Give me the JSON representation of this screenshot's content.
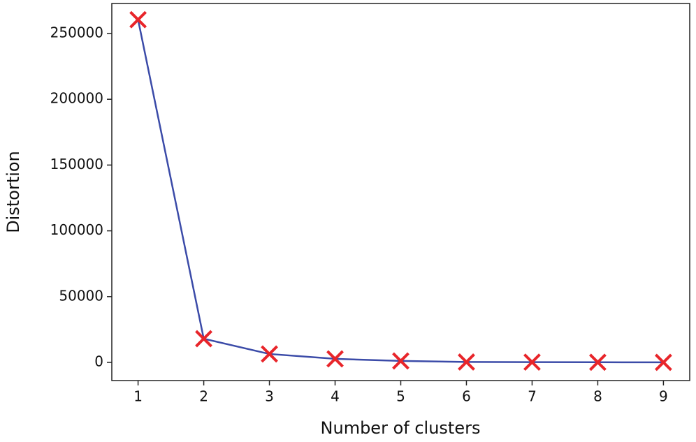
{
  "chart_data": {
    "type": "line",
    "xlabel": "Number of clusters",
    "ylabel": "Distortion",
    "x": [
      1,
      2,
      3,
      4,
      5,
      6,
      7,
      8,
      9
    ],
    "values": [
      260500,
      18000,
      6400,
      2700,
      1100,
      300,
      200,
      100,
      50
    ],
    "color": "#3b4ba8",
    "marker": "x",
    "marker_color": "#e8252a",
    "xlim": [
      0.6,
      9.4
    ],
    "xticks": [
      1,
      2,
      3,
      4,
      5,
      6,
      7,
      8,
      9
    ],
    "ylim": [
      -13800,
      272800
    ],
    "yticks": [
      0,
      50000,
      100000,
      150000,
      200000,
      250000
    ],
    "grid": false
  }
}
